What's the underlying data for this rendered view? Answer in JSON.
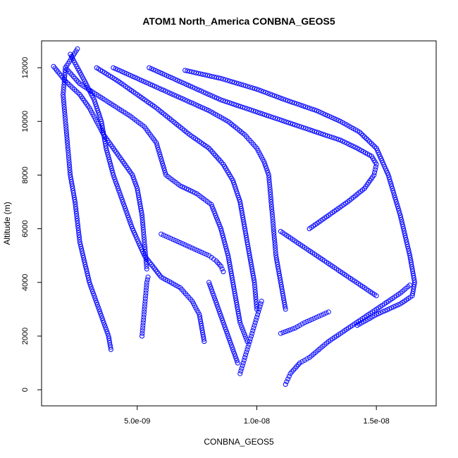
{
  "chart_data": {
    "type": "scatter",
    "title": "ATOM1 North_America CONBNA_GEOS5",
    "xlabel": "CONBNA_GEOS5",
    "ylabel": "Altitude (m)",
    "xlim": [
      1e-09,
      1.75e-08
    ],
    "ylim": [
      -600,
      13000
    ],
    "x_ticks": [
      5e-09,
      1e-08,
      1.5e-08
    ],
    "x_tick_labels": [
      "5.0e-09",
      "1.0e-08",
      "1.5e-08"
    ],
    "y_ticks": [
      0,
      2000,
      4000,
      6000,
      8000,
      10000,
      12000
    ],
    "y_tick_labels": [
      "0",
      "2000",
      "4000",
      "6000",
      "8000",
      "10000",
      "12000"
    ],
    "marker": "open-circle",
    "color": "#0000ff",
    "grid": false,
    "legend": "none",
    "series": [
      {
        "x": [
          2.5e-09,
          2e-09,
          1.9e-09,
          2e-09,
          2.1e-09,
          2.2e-09,
          2.4e-09,
          2.6e-09,
          3e-09,
          3.4e-09,
          3.8e-09,
          3.9e-09
        ],
        "y": [
          12700,
          12000,
          11000,
          10000,
          9000,
          8000,
          7000,
          5500,
          4000,
          3000,
          2000,
          1500
        ]
      },
      {
        "x": [
          1.5e-09,
          2e-09,
          2.6e-09,
          3e-09,
          3.3e-09,
          3.6e-09,
          4e-09,
          4.4e-09,
          4.8e-09,
          5e-09,
          5.2e-09,
          5.3e-09,
          5.4e-09
        ],
        "y": [
          12050,
          11500,
          11000,
          10500,
          10000,
          9500,
          9000,
          8500,
          8000,
          7500,
          6500,
          5500,
          4500
        ]
      },
      {
        "x": [
          2.2e-09,
          2.8e-09,
          3.2e-09,
          3.5e-09,
          3.7e-09,
          4e-09,
          4.4e-09,
          4.8e-09,
          5.3e-09,
          6e-09,
          6.8e-09,
          7.3e-09,
          7.6e-09,
          7.8e-09
        ],
        "y": [
          12500,
          11500,
          10800,
          10000,
          9000,
          8000,
          7000,
          6000,
          5000,
          4200,
          3800,
          3300,
          2800,
          1800
        ]
      },
      {
        "x": [
          2e-09,
          2.6e-09,
          3.3e-09,
          4e-09,
          4.7e-09,
          5.3e-09,
          5.8e-09,
          6e-09,
          6.2e-09,
          6.8e-09,
          7.5e-09,
          8.1e-09,
          8.5e-09,
          8.8e-09,
          9e-09,
          9.3e-09,
          9.6e-09
        ],
        "y": [
          12000,
          11400,
          11000,
          10600,
          10200,
          9800,
          9200,
          8600,
          8000,
          7600,
          7300,
          6900,
          6000,
          5000,
          4000,
          2500,
          1800
        ]
      },
      {
        "x": [
          3.3e-09,
          4.2e-09,
          5e-09,
          5.8e-09,
          6.5e-09,
          7.2e-09,
          8e-09,
          8.6e-09,
          9e-09,
          9.3e-09,
          9.5e-09,
          9.7e-09,
          9.9e-09,
          1e-08
        ],
        "y": [
          12000,
          11500,
          11000,
          10500,
          10000,
          9500,
          9000,
          8400,
          7800,
          7000,
          6000,
          5000,
          4000,
          3000
        ]
      },
      {
        "x": [
          4e-09,
          5e-09,
          6e-09,
          7e-09,
          8e-09,
          8.8e-09,
          9.5e-09,
          1e-08,
          1.03e-08,
          1.05e-08,
          1.06e-08,
          1.07e-08,
          1.08e-08,
          1.1e-08,
          1.12e-08
        ],
        "y": [
          12000,
          11600,
          11200,
          10800,
          10400,
          10000,
          9500,
          9000,
          8500,
          8000,
          7000,
          6000,
          5000,
          4000,
          3000
        ]
      },
      {
        "x": [
          5.5e-09,
          6.5e-09,
          7.5e-09,
          8.5e-09,
          9.5e-09,
          1.05e-08,
          1.15e-08,
          1.25e-08,
          1.35e-08,
          1.42e-08,
          1.48e-08,
          1.5e-08,
          1.49e-08,
          1.45e-08,
          1.38e-08,
          1.3e-08,
          1.22e-08
        ],
        "y": [
          12000,
          11600,
          11200,
          10800,
          10500,
          10200,
          9900,
          9600,
          9300,
          9000,
          8700,
          8400,
          8000,
          7500,
          7000,
          6500,
          6000
        ]
      },
      {
        "x": [
          7e-09,
          8.5e-09,
          1e-08,
          1.12e-08,
          1.25e-08,
          1.35e-08,
          1.43e-08,
          1.5e-08,
          1.55e-08,
          1.6e-08,
          1.64e-08,
          1.66e-08,
          1.65e-08,
          1.6e-08,
          1.5e-08,
          1.42e-08
        ],
        "y": [
          11900,
          11600,
          11200,
          10800,
          10400,
          10000,
          9600,
          9000,
          8000,
          6500,
          5000,
          4000,
          3500,
          3200,
          2800,
          2400
        ]
      },
      {
        "x": [
          1.12e-08,
          1.13e-08,
          1.14e-08,
          1.16e-08,
          1.18e-08,
          1.22e-08,
          1.26e-08,
          1.3e-08,
          1.35e-08,
          1.4e-08,
          1.45e-08,
          1.5e-08,
          1.55e-08,
          1.6e-08,
          1.64e-08
        ],
        "y": [
          200,
          400,
          600,
          800,
          1000,
          1200,
          1500,
          1800,
          2100,
          2400,
          2700,
          3000,
          3300,
          3600,
          3900
        ]
      },
      {
        "x": [
          9.3e-09,
          9.4e-09,
          9.5e-09,
          9.6e-09,
          9.7e-09,
          9.8e-09,
          9.9e-09,
          1e-08,
          1.01e-08,
          1.02e-08
        ],
        "y": [
          600,
          900,
          1200,
          1500,
          1800,
          2100,
          2400,
          2700,
          3000,
          3300
        ]
      },
      {
        "x": [
          8e-09,
          8.2e-09,
          8.4e-09,
          8.6e-09,
          8.8e-09,
          9e-09,
          9.2e-09
        ],
        "y": [
          4000,
          3500,
          3000,
          2500,
          2000,
          1500,
          1000
        ]
      },
      {
        "x": [
          6e-09,
          6.5e-09,
          7e-09,
          7.5e-09,
          8e-09,
          8.3e-09,
          8.5e-09,
          8.6e-09
        ],
        "y": [
          5800,
          5600,
          5400,
          5200,
          5000,
          4800,
          4600,
          4400
        ]
      },
      {
        "x": [
          1.1e-08,
          1.15e-08,
          1.2e-08,
          1.25e-08,
          1.3e-08,
          1.35e-08,
          1.4e-08,
          1.45e-08,
          1.5e-08
        ],
        "y": [
          5900,
          5600,
          5300,
          5000,
          4700,
          4400,
          4100,
          3800,
          3500
        ]
      },
      {
        "x": [
          1.1e-08,
          1.13e-08,
          1.16e-08,
          1.2e-08,
          1.25e-08,
          1.3e-08
        ],
        "y": [
          2100,
          2200,
          2300,
          2500,
          2700,
          2900
        ]
      },
      {
        "x": [
          5.2e-09,
          5.25e-09,
          5.3e-09,
          5.35e-09,
          5.4e-09,
          5.45e-09
        ],
        "y": [
          2000,
          2500,
          3000,
          3500,
          4000,
          4200
        ]
      }
    ]
  }
}
